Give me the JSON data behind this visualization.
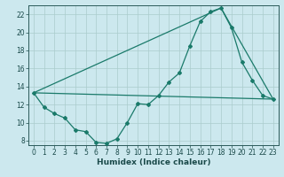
{
  "xlabel": "Humidex (Indice chaleur)",
  "bg_color": "#cce8ee",
  "grid_color": "#aacccc",
  "line_color": "#1a7a6a",
  "xlim": [
    -0.5,
    23.5
  ],
  "ylim": [
    7.5,
    23.0
  ],
  "yticks": [
    8,
    10,
    12,
    14,
    16,
    18,
    20,
    22
  ],
  "xticks": [
    0,
    1,
    2,
    3,
    4,
    5,
    6,
    7,
    8,
    9,
    10,
    11,
    12,
    13,
    14,
    15,
    16,
    17,
    18,
    19,
    20,
    21,
    22,
    23
  ],
  "curve1_x": [
    0,
    1,
    2,
    3,
    4,
    5,
    6,
    7,
    8,
    9,
    10,
    11,
    12,
    13,
    14,
    15,
    16,
    17,
    18,
    19,
    20,
    21,
    22,
    23
  ],
  "curve1_y": [
    13.3,
    11.7,
    11.0,
    10.5,
    9.2,
    9.0,
    7.8,
    7.7,
    8.2,
    10.0,
    12.1,
    12.0,
    13.0,
    14.5,
    15.5,
    18.5,
    21.2,
    22.3,
    22.7,
    20.5,
    16.7,
    14.7,
    13.0,
    12.6
  ],
  "line2_x": [
    0,
    18
  ],
  "line2_y": [
    13.3,
    22.7
  ],
  "line3_x": [
    0,
    23
  ],
  "line3_y": [
    13.3,
    12.6
  ],
  "line4_x": [
    18,
    23
  ],
  "line4_y": [
    22.7,
    12.6
  ],
  "xlabel_fontsize": 6.5,
  "tick_labelsize": 5.5
}
